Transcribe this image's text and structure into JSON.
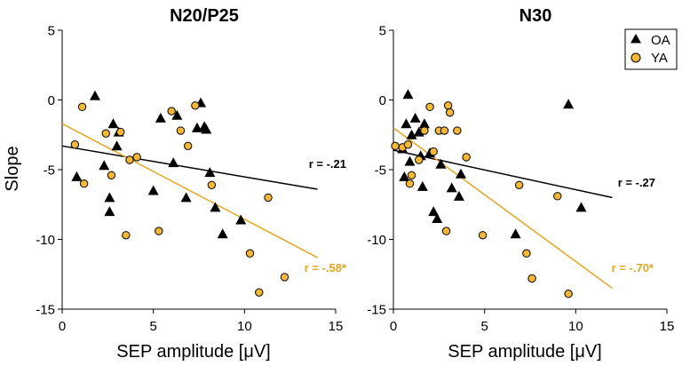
{
  "figure": {
    "ylabel": "Slope",
    "legend": {
      "placement": "top-right of right panel",
      "entries": [
        {
          "label": "OA",
          "marker": "triangle",
          "color": "#000000"
        },
        {
          "label": "YA",
          "marker": "circle",
          "color": "#F5B82E"
        }
      ]
    }
  },
  "chart_data": [
    {
      "type": "scatter",
      "title": "N20/P25",
      "xlabel": "SEP amplitude [μV]",
      "ylabel": "Slope",
      "xlim": [
        0,
        15
      ],
      "ylim": [
        -15,
        5
      ],
      "xticks": [
        "0",
        "5",
        "10",
        "15"
      ],
      "yticks": [
        "5",
        "0",
        "-5",
        "-10",
        "-15"
      ],
      "series": [
        {
          "name": "OA",
          "marker": "triangle",
          "color": "#000000",
          "points": [
            [
              0.8,
              -5.5
            ],
            [
              1.8,
              0.3
            ],
            [
              2.3,
              -4.7
            ],
            [
              2.6,
              -7.0
            ],
            [
              2.6,
              -8.0
            ],
            [
              2.8,
              -1.7
            ],
            [
              3.0,
              -3.3
            ],
            [
              3.1,
              -2.3
            ],
            [
              5.0,
              -6.5
            ],
            [
              5.4,
              -1.3
            ],
            [
              6.1,
              -4.5
            ],
            [
              6.3,
              -1.1
            ],
            [
              6.8,
              -7.0
            ],
            [
              7.4,
              -2.0
            ],
            [
              7.6,
              -0.2
            ],
            [
              7.9,
              -2.1
            ],
            [
              7.8,
              -1.9
            ],
            [
              8.1,
              -5.2
            ],
            [
              8.4,
              -7.7
            ],
            [
              8.8,
              -9.6
            ],
            [
              9.8,
              -8.6
            ]
          ]
        },
        {
          "name": "YA",
          "marker": "circle",
          "color": "#F5B82E",
          "points": [
            [
              0.7,
              -3.2
            ],
            [
              1.1,
              -0.5
            ],
            [
              1.2,
              -6.0
            ],
            [
              2.4,
              -2.4
            ],
            [
              2.7,
              -5.4
            ],
            [
              3.2,
              -2.3
            ],
            [
              3.5,
              -9.7
            ],
            [
              3.7,
              -4.3
            ],
            [
              4.1,
              -4.1
            ],
            [
              5.3,
              -9.4
            ],
            [
              6.0,
              -0.8
            ],
            [
              6.5,
              -2.2
            ],
            [
              6.9,
              -3.3
            ],
            [
              7.3,
              -0.4
            ],
            [
              8.2,
              -6.1
            ],
            [
              10.3,
              -11.0
            ],
            [
              10.8,
              -13.8
            ],
            [
              11.3,
              -7.0
            ],
            [
              12.2,
              -12.7
            ]
          ]
        }
      ],
      "fit_lines": [
        {
          "name": "OA fit",
          "color": "#000000",
          "from": [
            0,
            -3.3
          ],
          "to": [
            14,
            -6.4
          ],
          "label": "r = -.21"
        },
        {
          "name": "YA fit",
          "color": "#E8A51C",
          "from": [
            0,
            -1.7
          ],
          "to": [
            14,
            -11.3
          ],
          "label": "r = -.58*"
        }
      ]
    },
    {
      "type": "scatter",
      "title": "N30",
      "xlabel": "SEP amplitude [μV]",
      "ylabel": "",
      "xlim": [
        0,
        15
      ],
      "ylim": [
        -15,
        5
      ],
      "xticks": [
        "0",
        "5",
        "10",
        "15"
      ],
      "yticks": [
        "5",
        "0",
        "-5",
        "-10",
        "-15"
      ],
      "series": [
        {
          "name": "OA",
          "marker": "triangle",
          "color": "#000000",
          "points": [
            [
              0.5,
              -3.5
            ],
            [
              0.6,
              -5.5
            ],
            [
              0.7,
              -1.7
            ],
            [
              0.8,
              0.4
            ],
            [
              0.9,
              -4.4
            ],
            [
              1.0,
              -2.5
            ],
            [
              1.2,
              -1.3
            ],
            [
              1.4,
              -2.3
            ],
            [
              1.5,
              -4.0
            ],
            [
              1.6,
              -6.2
            ],
            [
              1.7,
              -1.7
            ],
            [
              2.0,
              -3.8
            ],
            [
              2.2,
              -8.0
            ],
            [
              2.4,
              -8.5
            ],
            [
              2.6,
              -4.6
            ],
            [
              3.2,
              -6.3
            ],
            [
              3.6,
              -6.9
            ],
            [
              3.7,
              -5.3
            ],
            [
              6.7,
              -9.6
            ],
            [
              9.6,
              -0.3
            ],
            [
              10.3,
              -7.7
            ]
          ]
        },
        {
          "name": "YA",
          "marker": "circle",
          "color": "#F5B82E",
          "points": [
            [
              0.1,
              -3.3
            ],
            [
              0.5,
              -3.4
            ],
            [
              0.8,
              -3.2
            ],
            [
              0.9,
              -6.0
            ],
            [
              1.0,
              -5.4
            ],
            [
              1.4,
              -4.3
            ],
            [
              1.7,
              -2.2
            ],
            [
              2.0,
              -0.5
            ],
            [
              2.2,
              -3.7
            ],
            [
              2.5,
              -2.2
            ],
            [
              2.8,
              -2.2
            ],
            [
              2.9,
              -9.4
            ],
            [
              3.0,
              -0.4
            ],
            [
              3.1,
              -0.9
            ],
            [
              3.5,
              -2.2
            ],
            [
              4.0,
              -4.1
            ],
            [
              4.9,
              -9.7
            ],
            [
              6.9,
              -6.1
            ],
            [
              7.3,
              -11.0
            ],
            [
              7.6,
              -12.8
            ],
            [
              9.0,
              -6.9
            ],
            [
              9.6,
              -13.9
            ]
          ]
        }
      ],
      "fit_lines": [
        {
          "name": "OA fit",
          "color": "#000000",
          "from": [
            0,
            -3.6
          ],
          "to": [
            12,
            -7.0
          ],
          "label": "r = -.27"
        },
        {
          "name": "YA fit",
          "color": "#E8A51C",
          "from": [
            0,
            -2.0
          ],
          "to": [
            12,
            -13.5
          ],
          "label": "r = -.70*"
        }
      ]
    }
  ]
}
